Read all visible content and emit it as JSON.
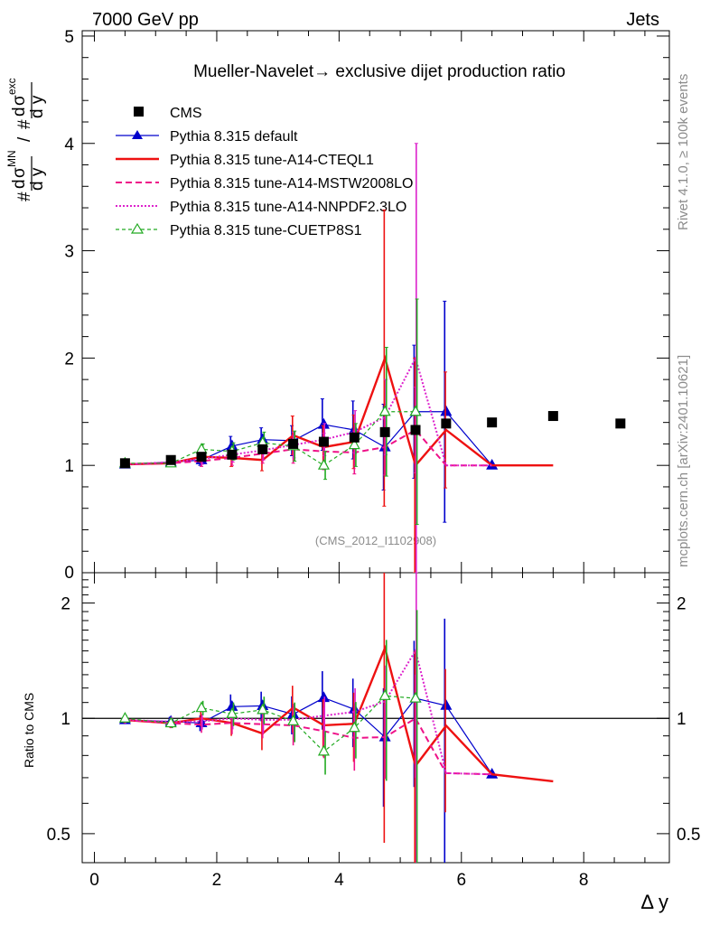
{
  "header": {
    "left": "7000 GeV pp",
    "right": "Jets"
  },
  "side": {
    "rivet": "Rivet 4.1.0, ≥ 100k events",
    "mcplots": "mcplots.cern.ch [arXiv:2401.10621]"
  },
  "chart_data": {
    "type": "line",
    "title": "Mueller-Navelet→ exclusive dijet production ratio",
    "watermark": "(CMS_2012_I1102908)",
    "xlabel": "Δ y",
    "ylabel_main": "#dσ^MN/dy / #dσ^exc/dy",
    "ylabel_main_parts": {
      "hash": "#",
      "d": "d",
      "sigma": "σ",
      "mn": "MN",
      "exc": "exc",
      "dy": "d y",
      "slash": "/"
    },
    "ylabel_ratio": "Ratio to CMS",
    "xlim": [
      -0.2,
      9.4
    ],
    "ylim_main": [
      0,
      5.05
    ],
    "ylim_ratio": [
      0.42,
      2.4
    ],
    "x_ticks": [
      "0",
      "2",
      "4",
      "6",
      "8"
    ],
    "y_ticks_main": [
      "1",
      "2",
      "3",
      "4",
      "5"
    ],
    "y_tick_main_zero": "0",
    "y_ticks_ratio": [
      "0.5",
      "1",
      "2"
    ],
    "colors": {
      "cms": "#000000",
      "default": "#0000cc",
      "cteql1": "#ee1111",
      "mstw": "#ee1188",
      "nnpdf": "#dd22cc",
      "cuetp": "#22aa22"
    },
    "data_points": {
      "name": "CMS",
      "x": [
        0.5,
        1.25,
        1.75,
        2.25,
        2.75,
        3.25,
        3.75,
        4.25,
        4.75,
        5.25,
        5.75,
        6.5,
        7.5,
        8.6
      ],
      "y": [
        1.02,
        1.05,
        1.08,
        1.1,
        1.15,
        1.2,
        1.22,
        1.26,
        1.31,
        1.33,
        1.39,
        1.4,
        1.46,
        1.39
      ]
    },
    "series": [
      {
        "name": "Pythia 8.315 default",
        "key": "default",
        "marker": "triangle",
        "dash": "",
        "x": [
          0.5,
          1.25,
          1.75,
          2.25,
          2.75,
          3.25,
          3.75,
          4.25,
          4.75,
          5.25,
          5.75,
          6.5
        ],
        "y": [
          1.01,
          1.03,
          1.05,
          1.18,
          1.24,
          1.23,
          1.38,
          1.33,
          1.17,
          1.5,
          1.5,
          1.0
        ],
        "err": [
          0.02,
          0.03,
          0.05,
          0.09,
          0.11,
          0.14,
          0.24,
          0.27,
          0.4,
          0.62,
          1.03,
          0.0
        ]
      },
      {
        "name": "Pythia 8.315 tune-A14-CTEQL1",
        "key": "cteql1",
        "marker": "",
        "dash": "",
        "x": [
          0.5,
          1.25,
          1.75,
          2.25,
          2.75,
          3.25,
          3.75,
          4.25,
          4.75,
          5.25,
          5.75,
          6.5,
          7.5
        ],
        "y": [
          1.01,
          1.02,
          1.08,
          1.07,
          1.05,
          1.28,
          1.17,
          1.22,
          2.0,
          1.0,
          1.33,
          1.0,
          1.0
        ],
        "err": [
          0.02,
          0.03,
          0.05,
          0.08,
          0.1,
          0.18,
          0.2,
          0.25,
          1.38,
          1.0,
          0.54,
          0.0,
          0.0
        ]
      },
      {
        "name": "Pythia 8.315 tune-A14-MSTW2008LO",
        "key": "mstw",
        "marker": "",
        "dash": "7,4",
        "x": [
          0.5,
          1.25,
          1.75,
          2.25,
          2.75,
          3.25,
          3.75,
          4.25,
          4.75,
          5.25,
          5.75,
          6.5
        ],
        "y": [
          1.01,
          1.02,
          1.04,
          1.07,
          1.11,
          1.15,
          1.13,
          1.12,
          1.17,
          1.33,
          1.0,
          1.0
        ],
        "err": [
          0.02,
          0.03,
          0.05,
          0.07,
          0.09,
          0.13,
          0.17,
          0.2,
          0.26,
          0.4,
          0.0,
          0.0
        ]
      },
      {
        "name": "Pythia 8.315 tune-A14-NNPDF2.3LO",
        "key": "nnpdf",
        "marker": "",
        "dash": "2,2",
        "x": [
          0.5,
          1.25,
          1.75,
          2.25,
          2.75,
          3.25,
          3.75,
          4.25,
          4.75,
          5.25,
          5.75,
          6.5
        ],
        "y": [
          1.01,
          1.03,
          1.06,
          1.1,
          1.14,
          1.19,
          1.24,
          1.31,
          1.45,
          2.0,
          1.0,
          1.0
        ],
        "err": [
          0.02,
          0.03,
          0.05,
          0.07,
          0.09,
          0.12,
          0.15,
          0.2,
          0.35,
          2.0,
          0.0,
          0.0
        ]
      },
      {
        "name": "Pythia 8.315 tune-CUETP8S1",
        "key": "cuetp",
        "marker": "triangle-open",
        "dash": "4,3",
        "x": [
          0.5,
          1.25,
          1.75,
          2.25,
          2.75,
          3.25,
          3.75,
          4.25,
          4.75,
          5.25
        ],
        "y": [
          1.02,
          1.02,
          1.15,
          1.13,
          1.21,
          1.18,
          1.0,
          1.19,
          1.5,
          1.5
        ],
        "err": [
          0.02,
          0.03,
          0.05,
          0.08,
          0.1,
          0.14,
          0.13,
          0.2,
          0.6,
          1.05
        ]
      }
    ]
  }
}
